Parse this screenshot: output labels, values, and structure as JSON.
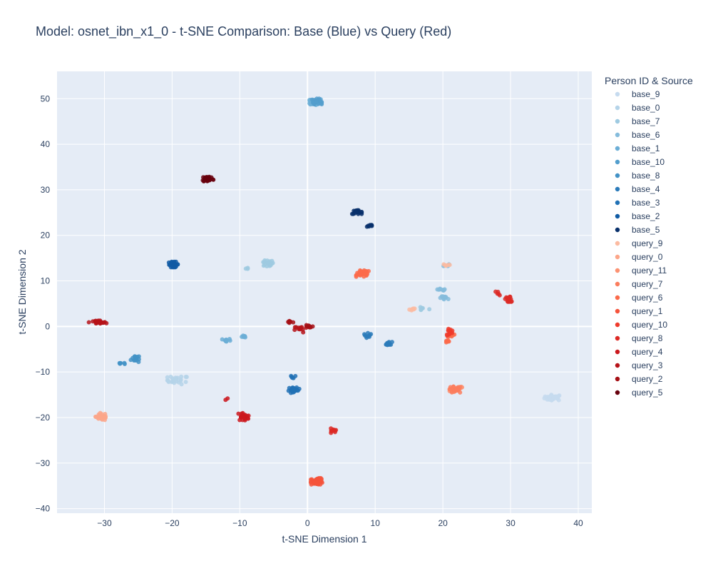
{
  "chart_data": {
    "type": "scatter",
    "title": "Model: osnet_ibn_x1_0 - t-SNE Comparison: Base (Blue) vs Query (Red)",
    "xlabel": "t-SNE Dimension 1",
    "ylabel": "t-SNE Dimension 2",
    "xlim": [
      -37,
      42
    ],
    "ylim": [
      -41,
      56
    ],
    "xticks": [
      -30,
      -20,
      -10,
      0,
      10,
      20,
      30,
      40
    ],
    "yticks": [
      -40,
      -30,
      -20,
      -10,
      0,
      10,
      20,
      30,
      40,
      50
    ],
    "grid": true,
    "legend_title": "Person ID & Source",
    "legend_position": "right",
    "series": [
      {
        "name": "base_9",
        "color": "#c6dbef",
        "clusters": [
          [
            36.3,
            -15.6,
            1.3,
            0.6,
            30
          ]
        ]
      },
      {
        "name": "base_0",
        "color": "#b5d4e9",
        "clusters": [
          [
            -19.2,
            -11.8,
            1.5,
            0.9,
            25
          ]
        ]
      },
      {
        "name": "base_7",
        "color": "#9ecae1",
        "clusters": [
          [
            -6.0,
            13.8,
            0.9,
            0.7,
            20
          ],
          [
            -8.8,
            12.7,
            0.5,
            0.2,
            3
          ],
          [
            17.0,
            3.9,
            1.0,
            0.4,
            6
          ]
        ]
      },
      {
        "name": "base_6",
        "color": "#85bcdc",
        "clusters": [
          [
            19.6,
            8.0,
            0.8,
            0.3,
            10
          ],
          [
            20.3,
            6.2,
            0.7,
            0.4,
            9
          ],
          [
            20.6,
            13.5,
            0.5,
            0.3,
            4
          ]
        ]
      },
      {
        "name": "base_1",
        "color": "#6baed6",
        "clusters": [
          [
            1.2,
            49.3,
            0.9,
            0.7,
            60
          ],
          [
            -12.0,
            -3.1,
            0.6,
            0.4,
            10
          ],
          [
            -9.4,
            -2.1,
            0.4,
            0.3,
            6
          ]
        ]
      },
      {
        "name": "base_10",
        "color": "#539ecd",
        "clusters": [
          [
            1.4,
            49.4,
            0.7,
            0.6,
            25
          ]
        ]
      },
      {
        "name": "base_8",
        "color": "#4292c6",
        "clusters": [
          [
            -25.5,
            -7.0,
            0.6,
            0.9,
            14
          ],
          [
            -27.7,
            -8.2,
            0.7,
            0.3,
            6
          ]
        ]
      },
      {
        "name": "base_4",
        "color": "#2b7bba",
        "clusters": [
          [
            12.0,
            -3.8,
            0.5,
            0.4,
            14
          ],
          [
            8.9,
            -1.8,
            0.5,
            0.7,
            10
          ]
        ]
      },
      {
        "name": "base_3",
        "color": "#2171b5",
        "clusters": [
          [
            -2.0,
            -14.0,
            0.8,
            0.6,
            22
          ],
          [
            -2.1,
            -11.0,
            0.6,
            0.5,
            5
          ]
        ]
      },
      {
        "name": "base_2",
        "color": "#105ba4",
        "clusters": [
          [
            -19.8,
            13.6,
            0.7,
            0.6,
            30
          ]
        ]
      },
      {
        "name": "base_5",
        "color": "#08306b",
        "clusters": [
          [
            7.3,
            25.1,
            0.7,
            0.4,
            22
          ],
          [
            9.2,
            22.1,
            0.5,
            0.3,
            8
          ]
        ]
      },
      {
        "name": "query_9",
        "color": "#fcbba1",
        "clusters": [
          [
            15.5,
            3.9,
            0.5,
            0.6,
            6
          ],
          [
            20.6,
            13.5,
            0.6,
            0.3,
            5
          ]
        ]
      },
      {
        "name": "query_0",
        "color": "#fca689",
        "clusters": [
          [
            -30.4,
            -19.8,
            0.9,
            0.8,
            30
          ]
        ]
      },
      {
        "name": "query_11",
        "color": "#fc9272",
        "clusters": [
          [
            21.3,
            -14.2,
            0.6,
            0.5,
            10
          ],
          [
            22.4,
            -13.6,
            0.5,
            0.5,
            8
          ]
        ]
      },
      {
        "name": "query_7",
        "color": "#fb7d5d",
        "clusters": [
          [
            21.8,
            -13.9,
            0.9,
            0.7,
            18
          ]
        ]
      },
      {
        "name": "query_6",
        "color": "#fb6a4a",
        "clusters": [
          [
            8.2,
            11.6,
            1.0,
            0.7,
            30
          ],
          [
            21.2,
            -2.0,
            0.5,
            0.6,
            10
          ],
          [
            20.8,
            -3.2,
            0.5,
            0.3,
            6
          ]
        ]
      },
      {
        "name": "query_1",
        "color": "#f5533b",
        "clusters": [
          [
            1.4,
            -34.0,
            0.9,
            0.7,
            40
          ]
        ]
      },
      {
        "name": "query_10",
        "color": "#ef3b2c",
        "clusters": [
          [
            21.0,
            -1.2,
            0.5,
            0.8,
            15
          ]
        ]
      },
      {
        "name": "query_8",
        "color": "#dc2924",
        "clusters": [
          [
            29.8,
            6.0,
            0.6,
            0.6,
            14
          ],
          [
            28.0,
            7.3,
            0.4,
            0.5,
            5
          ],
          [
            3.7,
            -23.0,
            0.5,
            0.6,
            12
          ]
        ]
      },
      {
        "name": "query_4",
        "color": "#cb181d",
        "clusters": [
          [
            -9.5,
            -19.8,
            0.8,
            0.8,
            22
          ],
          [
            -12.0,
            -16.0,
            0.2,
            0.2,
            2
          ]
        ]
      },
      {
        "name": "query_3",
        "color": "#b61319",
        "clusters": [
          [
            -31.0,
            0.9,
            1.3,
            0.4,
            25
          ],
          [
            -1.0,
            -0.6,
            0.9,
            0.7,
            12
          ]
        ]
      },
      {
        "name": "query_2",
        "color": "#a50f15",
        "clusters": [
          [
            -2.6,
            1.0,
            0.5,
            0.4,
            8
          ],
          [
            0.2,
            0.0,
            0.6,
            0.6,
            10
          ]
        ]
      },
      {
        "name": "query_5",
        "color": "#67000d",
        "clusters": [
          [
            -14.7,
            32.4,
            0.8,
            0.6,
            30
          ]
        ]
      }
    ]
  }
}
